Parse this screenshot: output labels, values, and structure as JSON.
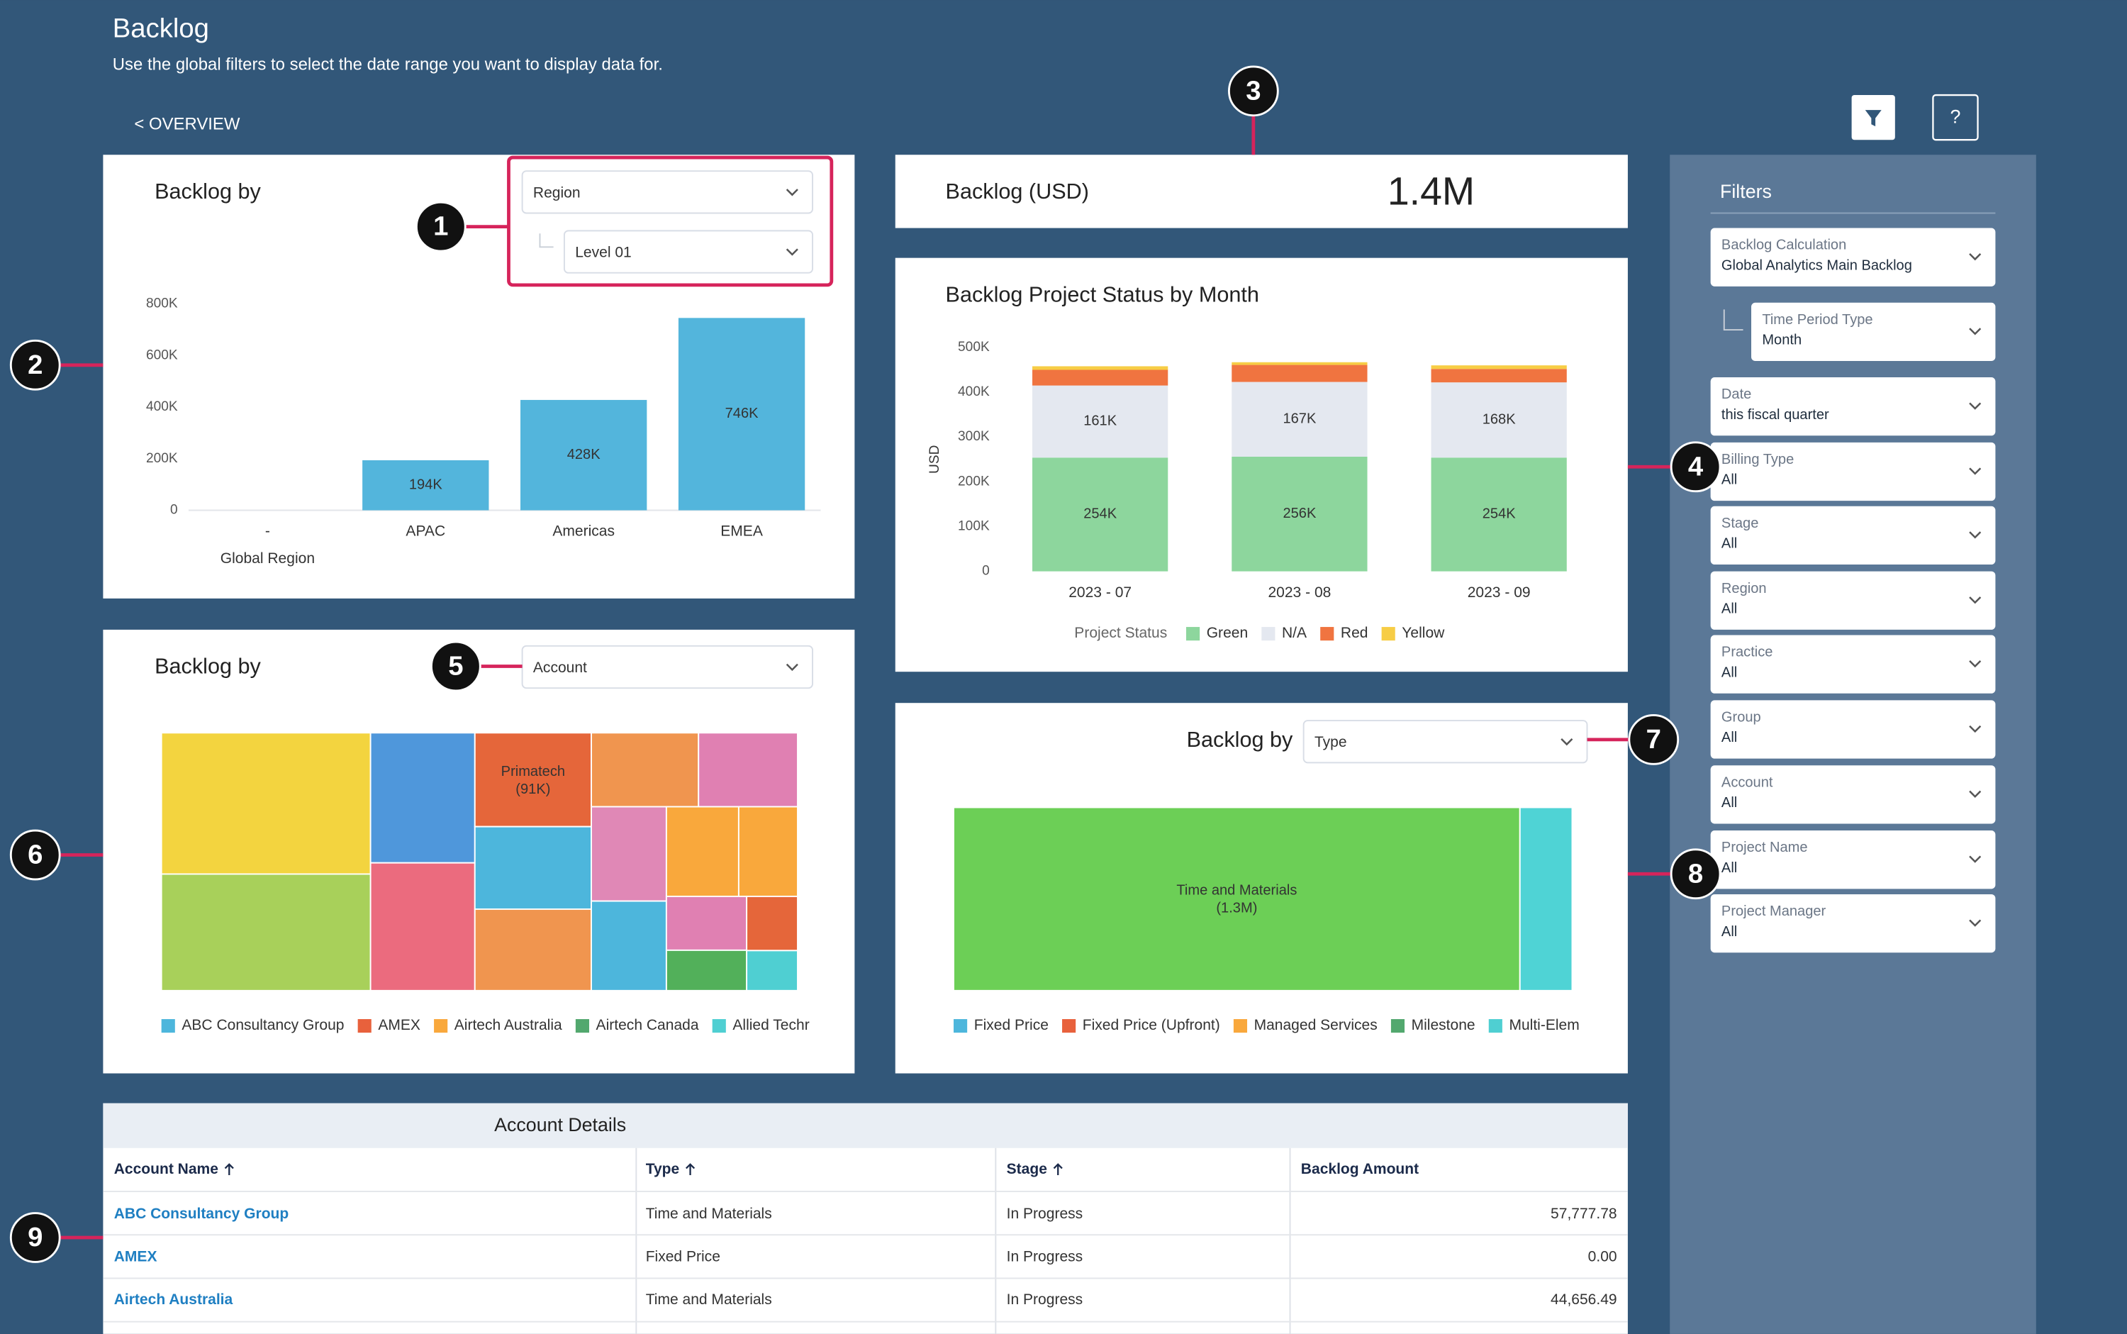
{
  "header": {
    "title": "Backlog",
    "subtitle": "Use the global filters to select the date range you want to display data for.",
    "back_link": "< OVERVIEW",
    "help_button": "?"
  },
  "callouts": [
    "1",
    "2",
    "3",
    "4",
    "5",
    "6",
    "7",
    "8",
    "9"
  ],
  "region_panel": {
    "title": "Backlog by",
    "dropdown": "Region",
    "sub_dropdown": "Level 01",
    "chart_data": {
      "type": "bar",
      "x_label": "Global Region",
      "categories": [
        "-",
        "APAC",
        "Americas",
        "EMEA"
      ],
      "values": [
        null,
        194000,
        428000,
        746000
      ],
      "value_labels": [
        null,
        "194K",
        "428K",
        "746K"
      ],
      "color": "#53b5dc",
      "ylim": [
        0,
        800000
      ],
      "yticks": [
        0,
        {
          "value": 200000,
          "label": "200K"
        },
        {
          "value": 400000,
          "label": "400K"
        },
        {
          "value": 600000,
          "label": "600K"
        },
        {
          "value": 800000,
          "label": "800K"
        }
      ]
    }
  },
  "kpi_panel": {
    "label": "Backlog (USD)",
    "value": "1.4M"
  },
  "status_panel": {
    "title": "Backlog Project Status by Month",
    "chart_data": {
      "type": "stacked_bar",
      "y_label": "USD",
      "legend_title": "Project Status",
      "categories": [
        "2023 - 07",
        "2023 - 08",
        "2023 - 09"
      ],
      "series": [
        {
          "name": "Green",
          "color": "#8dd69d",
          "values": [
            254000,
            256000,
            254000
          ],
          "value_labels": [
            "254K",
            "256K",
            "254K"
          ]
        },
        {
          "name": "N/A",
          "color": "#e4e8f0",
          "values": [
            161000,
            167000,
            168000
          ],
          "value_labels": [
            "161K",
            "167K",
            "168K"
          ]
        },
        {
          "name": "Red",
          "color": "#f07440",
          "values": [
            35000,
            38000,
            30000
          ]
        },
        {
          "name": "Yellow",
          "color": "#f7cd45",
          "values": [
            8000,
            6000,
            8000
          ]
        }
      ],
      "ylim": [
        0,
        500000
      ],
      "yticks": [
        0,
        {
          "value": 100000,
          "label": "100K"
        },
        {
          "value": 200000,
          "label": "200K"
        },
        {
          "value": 300000,
          "label": "300K"
        },
        {
          "value": 400000,
          "label": "400K"
        },
        {
          "value": 500000,
          "label": "500K"
        }
      ]
    }
  },
  "account_panel": {
    "title": "Backlog by",
    "dropdown": "Account",
    "chart_data": {
      "type": "treemap",
      "tiles": [
        {
          "label": null,
          "value": 246000,
          "color": "#f3d43f"
        },
        {
          "label": null,
          "value": 203000,
          "color": "#a8d05a"
        },
        {
          "label": null,
          "value": 113000,
          "color": "#4f97db"
        },
        {
          "label": null,
          "value": 111000,
          "color": "#eb6b7e"
        },
        {
          "label": "Primatech",
          "value": 91000,
          "value_label": "(91K)",
          "color": "#e5663a"
        },
        {
          "label": null,
          "value": 80000,
          "color": "#4db6dc"
        },
        {
          "label": null,
          "value": 79000,
          "color": "#f0954f"
        },
        {
          "label": null,
          "value": 66000,
          "color": "#f0954f"
        },
        {
          "label": null,
          "value": 61000,
          "color": "#e080b2"
        },
        {
          "label": null,
          "value": 59000,
          "color": "#e088b6"
        },
        {
          "label": null,
          "value": 56000,
          "color": "#4db6dc"
        },
        {
          "label": null,
          "value": 54000,
          "color": "#f9a83c"
        },
        {
          "label": null,
          "value": 44000,
          "color": "#f9a83c"
        },
        {
          "label": null,
          "value": 36000,
          "color": "#e080b2"
        },
        {
          "label": null,
          "value": 27000,
          "color": "#52b05a"
        },
        {
          "label": null,
          "value": 23000,
          "color": "#e5663a"
        },
        {
          "label": null,
          "value": 17000,
          "color": "#4fcfd2"
        }
      ],
      "legend": [
        {
          "name": "ABC Consultancy Group",
          "color": "#4db6dc"
        },
        {
          "name": "AMEX",
          "color": "#e8613c"
        },
        {
          "name": "Airtech Australia",
          "color": "#f9a83c"
        },
        {
          "name": "Airtech Canada",
          "color": "#52a86e"
        },
        {
          "name": "Allied Techr",
          "color": "#4fcfd2"
        }
      ]
    }
  },
  "type_panel": {
    "title": "Backlog by",
    "dropdown": "Type",
    "chart_data": {
      "type": "treemap",
      "tiles": [
        {
          "label": "Time and Materials",
          "value": 1300000,
          "value_label": "(1.3M)",
          "color": "#6ccf56"
        },
        {
          "label": null,
          "value": 120000,
          "color": "#4fd3d5"
        }
      ],
      "legend": [
        {
          "name": "Fixed Price",
          "color": "#4db6dc"
        },
        {
          "name": "Fixed Price (Upfront)",
          "color": "#e8613c"
        },
        {
          "name": "Managed Services",
          "color": "#f9a83c"
        },
        {
          "name": "Milestone",
          "color": "#52a86e"
        },
        {
          "name": "Multi-Elem",
          "color": "#4fcfd2"
        }
      ]
    }
  },
  "filters": {
    "title": "Filters",
    "items": [
      {
        "label": "Backlog Calculation",
        "value": "Global Analytics Main Backlog"
      },
      {
        "label": "Time Period Type",
        "value": "Month"
      },
      {
        "label": "Date",
        "value": "this fiscal quarter"
      },
      {
        "label": "Billing Type",
        "value": "All"
      },
      {
        "label": "Stage",
        "value": "All"
      },
      {
        "label": "Region",
        "value": "All"
      },
      {
        "label": "Practice",
        "value": "All"
      },
      {
        "label": "Group",
        "value": "All"
      },
      {
        "label": "Account",
        "value": "All"
      },
      {
        "label": "Project Name",
        "value": "All"
      },
      {
        "label": "Project Manager",
        "value": "All"
      }
    ]
  },
  "table": {
    "title": "Account Details",
    "columns": [
      "Account Name",
      "Type",
      "Stage",
      "Backlog Amount"
    ],
    "rows": [
      [
        "ABC Consultancy Group",
        "Time and Materials",
        "In Progress",
        "57,777.78"
      ],
      [
        "AMEX",
        "Fixed Price",
        "In Progress",
        "0.00"
      ],
      [
        "Airtech Australia",
        "Time and Materials",
        "In Progress",
        "44,656.49"
      ]
    ]
  }
}
